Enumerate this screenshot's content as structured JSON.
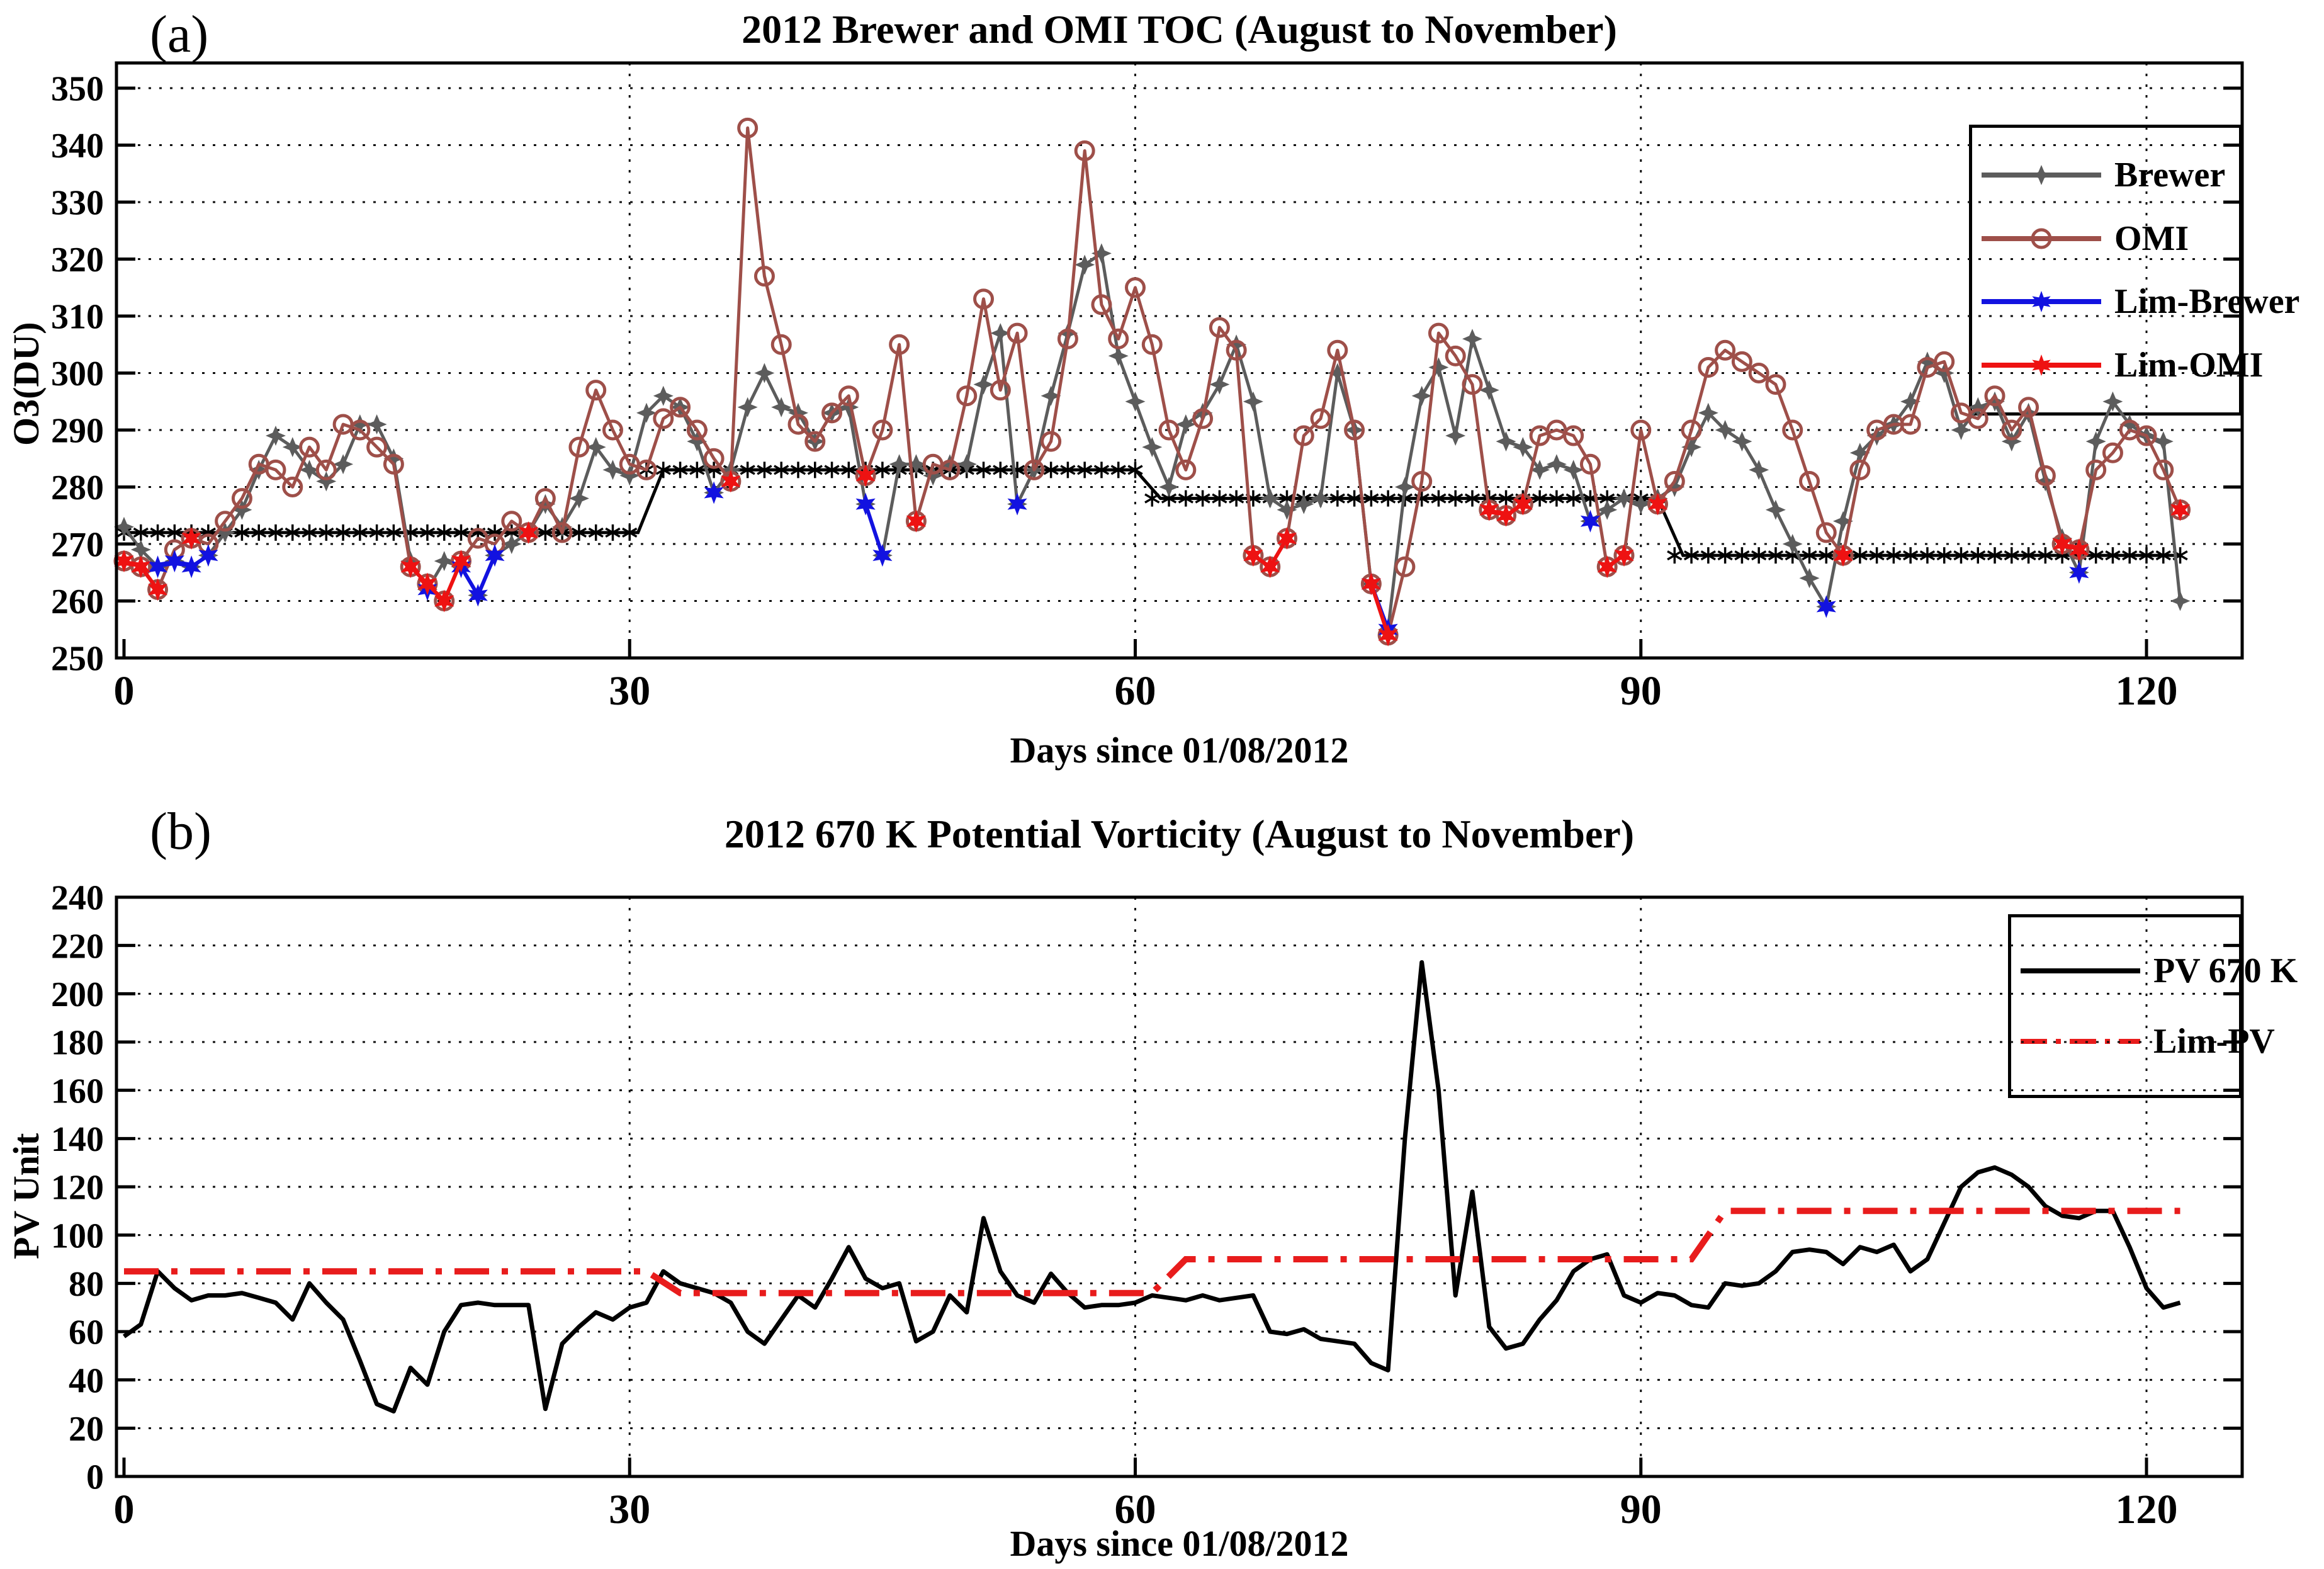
{
  "figure": {
    "panel_a": {
      "label": "(a)",
      "title": "2012 Brewer and OMI TOC (August to November)",
      "ylabel": "O3(DU)",
      "xlabel": "Days since 01/08/2012"
    },
    "panel_b": {
      "label": "(b)",
      "title": "2012 670 K Potential Vorticity (August to November)",
      "ylabel": "PV Unit",
      "xlabel": "Days since 01/08/2012"
    },
    "colors": {
      "brewer": "#5c5c5c",
      "omi": "#9e4f49",
      "lim_brewer": "#1212e0",
      "lim_omi": "#ee1212",
      "pv": "#000000",
      "lim_pv": "#e81c1c",
      "limit_steps": "#000000",
      "axis": "#000000",
      "grid": "#111111"
    }
  },
  "chart_data": [
    {
      "type": "line",
      "panel": "a",
      "title": "2012 Brewer and OMI TOC (August to November)",
      "xlabel": "Days since 01/08/2012",
      "ylabel": "O3(DU)",
      "x_start": 0,
      "x_step": 1,
      "xlim": [
        0,
        126
      ],
      "ylim": [
        250,
        350
      ],
      "xticks": [
        0,
        30,
        60,
        90,
        120
      ],
      "yticks": [
        250,
        260,
        270,
        280,
        290,
        300,
        310,
        320,
        330,
        340,
        350
      ],
      "grid": "dotted",
      "legend_position": "top-right",
      "series": [
        {
          "name": "Limit steps",
          "in_legend": false,
          "type": "step",
          "color": "#000000",
          "marker": "asterisk",
          "width": 5,
          "vertices": [
            [
              0,
              272
            ],
            [
              30.5,
              272
            ],
            [
              32,
              283
            ],
            [
              60,
              283
            ],
            [
              61.5,
              278
            ],
            [
              91,
              278
            ],
            [
              92.5,
              268
            ],
            [
              122,
              268
            ]
          ],
          "marker_levels": [
            {
              "from": 0,
              "to": 30,
              "value": 272
            },
            {
              "from": 31,
              "to": 60,
              "value": 283
            },
            {
              "from": 61,
              "to": 91,
              "value": 278
            },
            {
              "from": 92,
              "to": 122,
              "value": 268
            }
          ]
        },
        {
          "name": "Brewer",
          "in_legend": true,
          "type": "line",
          "color": "#5c5c5c",
          "marker": "star4",
          "width": 5,
          "values": [
            273,
            269,
            266,
            267,
            266,
            268,
            272,
            276,
            283,
            289,
            287,
            283,
            281,
            284,
            291,
            291,
            285,
            267,
            262,
            267,
            266,
            261,
            268,
            270,
            272,
            277,
            273,
            278,
            287,
            283,
            282,
            293,
            296,
            294,
            288,
            279,
            283,
            294,
            300,
            294,
            293,
            288,
            293,
            294,
            277,
            268,
            284,
            284,
            282,
            284,
            284,
            298,
            307,
            277,
            283,
            296,
            307,
            319,
            321,
            303,
            295,
            287,
            280,
            291,
            293,
            298,
            305,
            295,
            278,
            276,
            277,
            278,
            300,
            290,
            263,
            255,
            280,
            296,
            301,
            289,
            306,
            297,
            288,
            287,
            283,
            284,
            283,
            274,
            276,
            278,
            277,
            278,
            280,
            287,
            293,
            290,
            288,
            283,
            276,
            270,
            264,
            259,
            274,
            286,
            289,
            291,
            295,
            302,
            300,
            290,
            294,
            295,
            288,
            293,
            281,
            271,
            265,
            288,
            295,
            291,
            289,
            288,
            260
          ]
        },
        {
          "name": "OMI",
          "in_legend": true,
          "type": "line",
          "color": "#9e4f49",
          "marker": "circle",
          "width": 5,
          "values": [
            267,
            266,
            262,
            269,
            271,
            270,
            274,
            278,
            284,
            283,
            280,
            287,
            283,
            291,
            290,
            287,
            284,
            266,
            263,
            260,
            267,
            271,
            270,
            274,
            272,
            278,
            272,
            287,
            297,
            290,
            284,
            283,
            292,
            294,
            290,
            285,
            281,
            343,
            317,
            305,
            291,
            288,
            293,
            296,
            282,
            290,
            305,
            274,
            284,
            283,
            296,
            313,
            297,
            307,
            283,
            288,
            306,
            339,
            312,
            306,
            315,
            305,
            290,
            283,
            292,
            308,
            304,
            268,
            266,
            271,
            289,
            292,
            304,
            290,
            263,
            254,
            266,
            281,
            307,
            303,
            298,
            276,
            275,
            277,
            289,
            290,
            289,
            284,
            266,
            268,
            290,
            277,
            281,
            290,
            301,
            304,
            302,
            300,
            298,
            290,
            281,
            272,
            268,
            283,
            290,
            291,
            291,
            301,
            302,
            293,
            292,
            296,
            290,
            294,
            282,
            270,
            269,
            283,
            286,
            290,
            289,
            283,
            276
          ]
        },
        {
          "name": "Lim-Brewer",
          "in_legend": true,
          "type": "scatter",
          "color": "#1212e0",
          "marker": "star6",
          "points": [
            [
              2,
              266
            ],
            [
              3,
              267
            ],
            [
              4,
              266
            ],
            [
              5,
              268
            ],
            [
              18,
              262
            ],
            [
              20,
              266
            ],
            [
              21,
              261
            ],
            [
              22,
              268
            ],
            [
              35,
              279
            ],
            [
              44,
              277
            ],
            [
              45,
              268
            ],
            [
              53,
              277
            ],
            [
              74,
              263
            ],
            [
              75,
              255
            ],
            [
              87,
              274
            ],
            [
              101,
              259
            ],
            [
              116,
              265
            ]
          ]
        },
        {
          "name": "Lim-OMI",
          "in_legend": true,
          "type": "scatter",
          "color": "#ee1212",
          "marker": "star6",
          "points": [
            [
              0,
              267
            ],
            [
              1,
              266
            ],
            [
              2,
              262
            ],
            [
              4,
              271
            ],
            [
              17,
              266
            ],
            [
              18,
              263
            ],
            [
              19,
              260
            ],
            [
              20,
              267
            ],
            [
              24,
              272
            ],
            [
              36,
              281
            ],
            [
              44,
              282
            ],
            [
              47,
              274
            ],
            [
              67,
              268
            ],
            [
              68,
              266
            ],
            [
              69,
              271
            ],
            [
              74,
              263
            ],
            [
              75,
              254
            ],
            [
              81,
              276
            ],
            [
              82,
              275
            ],
            [
              83,
              277
            ],
            [
              88,
              266
            ],
            [
              89,
              268
            ],
            [
              91,
              277
            ],
            [
              102,
              268
            ],
            [
              115,
              270
            ],
            [
              116,
              269
            ],
            [
              122,
              276
            ]
          ]
        }
      ]
    },
    {
      "type": "line",
      "panel": "b",
      "title": "2012 670 K Potential Vorticity (August to November)",
      "xlabel": "Days since 01/08/2012",
      "ylabel": "PV Unit",
      "x_start": 0,
      "x_step": 1,
      "xlim": [
        0,
        126
      ],
      "ylim": [
        0,
        240
      ],
      "xticks": [
        0,
        30,
        60,
        90,
        120
      ],
      "yticks": [
        0,
        20,
        40,
        60,
        80,
        100,
        120,
        140,
        160,
        180,
        200,
        220,
        240
      ],
      "grid": "dotted",
      "legend_position": "top-right",
      "series": [
        {
          "name": "PV 670 K",
          "in_legend": true,
          "type": "line",
          "color": "#000000",
          "width": 7,
          "values": [
            58,
            63,
            85,
            78,
            73,
            75,
            75,
            76,
            74,
            72,
            65,
            80,
            72,
            65,
            48,
            30,
            27,
            45,
            38,
            60,
            71,
            72,
            71,
            71,
            71,
            28,
            55,
            62,
            68,
            65,
            70,
            72,
            85,
            80,
            78,
            76,
            72,
            60,
            55,
            65,
            75,
            70,
            82,
            95,
            82,
            78,
            80,
            56,
            60,
            75,
            68,
            107,
            85,
            75,
            72,
            84,
            76,
            70,
            71,
            71,
            72,
            75,
            74,
            73,
            75,
            73,
            74,
            75,
            60,
            59,
            61,
            57,
            56,
            55,
            47,
            44,
            140,
            213,
            160,
            75,
            118,
            62,
            53,
            55,
            65,
            73,
            85,
            90,
            92,
            75,
            72,
            76,
            75,
            71,
            70,
            80,
            79,
            80,
            85,
            93,
            94,
            93,
            88,
            95,
            93,
            96,
            85,
            90,
            105,
            120,
            126,
            128,
            125,
            120,
            112,
            108,
            107,
            110,
            110,
            95,
            78,
            70,
            72
          ]
        },
        {
          "name": "Lim-PV",
          "in_legend": true,
          "type": "step",
          "style": "dash-dot",
          "color": "#e81c1c",
          "width": 10,
          "vertices": [
            [
              0,
              85
            ],
            [
              31,
              85
            ],
            [
              33,
              76
            ],
            [
              61,
              76
            ],
            [
              63,
              90
            ],
            [
              93,
              90
            ],
            [
              95,
              110
            ],
            [
              122,
              110
            ]
          ]
        }
      ]
    }
  ]
}
